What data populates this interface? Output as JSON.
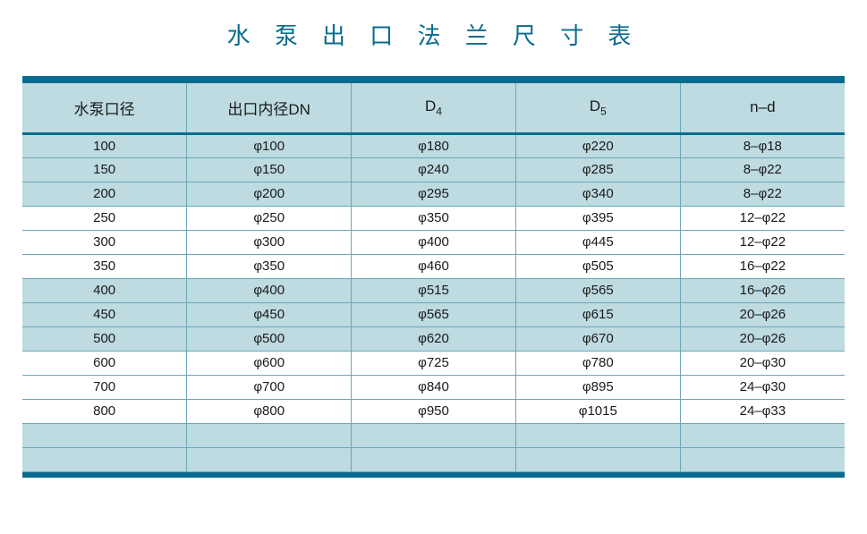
{
  "title": "水 泵 出 口 法 兰 尺 寸 表",
  "colors": {
    "title_color": "#0a6b8e",
    "bar_color": "#0a6b8e",
    "header_bg": "#bddbe1",
    "header_border_bottom": "#0a6b8e",
    "cell_border": "#6aa8b8",
    "row_white": "#ffffff",
    "row_tint": "#bddbe1",
    "text_color": "#1a1a1a"
  },
  "columns": [
    {
      "label": "水泵口径",
      "sub": ""
    },
    {
      "label": "出口内径DN",
      "sub": ""
    },
    {
      "label": "D",
      "sub": "4"
    },
    {
      "label": "D",
      "sub": "5"
    },
    {
      "label": "n–d",
      "sub": ""
    }
  ],
  "rows": [
    {
      "tint": true,
      "cells": [
        "100",
        "φ100",
        "φ180",
        "φ220",
        "8–φ18"
      ]
    },
    {
      "tint": true,
      "cells": [
        "150",
        "φ150",
        "φ240",
        "φ285",
        "8–φ22"
      ]
    },
    {
      "tint": true,
      "cells": [
        "200",
        "φ200",
        "φ295",
        "φ340",
        "8–φ22"
      ]
    },
    {
      "tint": false,
      "cells": [
        "250",
        "φ250",
        "φ350",
        "φ395",
        "12–φ22"
      ]
    },
    {
      "tint": false,
      "cells": [
        "300",
        "φ300",
        "φ400",
        "φ445",
        "12–φ22"
      ]
    },
    {
      "tint": false,
      "cells": [
        "350",
        "φ350",
        "φ460",
        "φ505",
        "16–φ22"
      ]
    },
    {
      "tint": true,
      "cells": [
        "400",
        "φ400",
        "φ515",
        "φ565",
        "16–φ26"
      ]
    },
    {
      "tint": true,
      "cells": [
        "450",
        "φ450",
        "φ565",
        "φ615",
        "20–φ26"
      ]
    },
    {
      "tint": true,
      "cells": [
        "500",
        "φ500",
        "φ620",
        "φ670",
        "20–φ26"
      ]
    },
    {
      "tint": false,
      "cells": [
        "600",
        "φ600",
        "φ725",
        "φ780",
        "20–φ30"
      ]
    },
    {
      "tint": false,
      "cells": [
        "700",
        "φ700",
        "φ840",
        "φ895",
        "24–φ30"
      ]
    },
    {
      "tint": false,
      "cells": [
        "800",
        "φ800",
        "φ950",
        "φ1015",
        "24–φ33"
      ]
    },
    {
      "tint": true,
      "cells": [
        "",
        "",
        "",
        "",
        ""
      ]
    },
    {
      "tint": true,
      "cells": [
        "",
        "",
        "",
        "",
        ""
      ]
    }
  ]
}
